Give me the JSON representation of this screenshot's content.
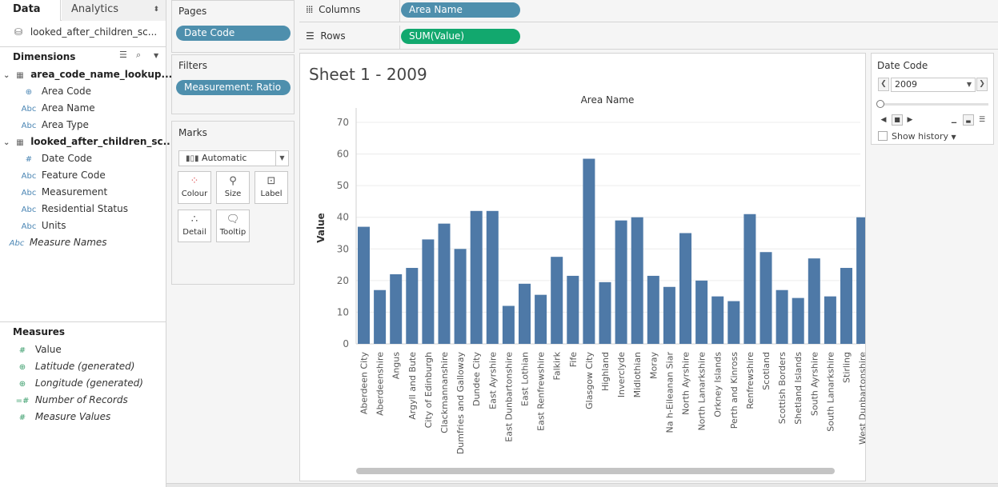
{
  "left_pane": {
    "tabs": {
      "data": "Data",
      "analytics": "Analytics"
    },
    "datasource": "looked_after_children_sc...",
    "dimensions_title": "Dimensions",
    "groups": [
      {
        "label": "area_code_name_lookup....",
        "fields": [
          {
            "label": "Area Code",
            "type": "geo"
          },
          {
            "label": "Area Name",
            "type": "Abc"
          },
          {
            "label": "Area Type",
            "type": "Abc"
          }
        ]
      },
      {
        "label": "looked_after_children_sc...",
        "fields": [
          {
            "label": "Date Code",
            "type": "#"
          },
          {
            "label": "Feature Code",
            "type": "Abc"
          },
          {
            "label": "Measurement",
            "type": "Abc"
          },
          {
            "label": "Residential Status",
            "type": "Abc"
          },
          {
            "label": "Units",
            "type": "Abc"
          }
        ]
      }
    ],
    "measure_names": "Measure Names",
    "measures_title": "Measures",
    "measures": [
      {
        "label": "Value",
        "type": "#",
        "italic": false
      },
      {
        "label": "Latitude (generated)",
        "type": "geo",
        "italic": true
      },
      {
        "label": "Longitude (generated)",
        "type": "geo",
        "italic": true
      },
      {
        "label": "Number of Records",
        "type": "=#",
        "italic": true
      },
      {
        "label": "Measure Values",
        "type": "#",
        "italic": true
      }
    ]
  },
  "pages": {
    "title": "Pages",
    "pill": "Date Code"
  },
  "filters": {
    "title": "Filters",
    "pill": "Measurement: Ratio"
  },
  "marks": {
    "title": "Marks",
    "type": "Automatic",
    "buttons": [
      "Colour",
      "Size",
      "Label",
      "Detail",
      "Tooltip"
    ]
  },
  "shelves": {
    "columns": {
      "label": "Columns",
      "pill": "Area Name"
    },
    "rows": {
      "label": "Rows",
      "pill": "SUM(Value)"
    }
  },
  "sheet_title": "Sheet 1 - 2009",
  "date_code_card": {
    "title": "Date Code",
    "value": "2009",
    "show_history": "Show history"
  },
  "colors": {
    "bar": "#4e79a7",
    "pill_blue": "#4e8fad",
    "pill_green": "#12a86e"
  },
  "chart_data": {
    "type": "bar",
    "title": "Area Name",
    "ylabel": "Value",
    "ylim": [
      0,
      70
    ],
    "yticks": [
      0,
      10,
      20,
      30,
      40,
      50,
      60,
      70
    ],
    "categories": [
      "Aberdeen City",
      "Aberdeenshire",
      "Angus",
      "Argyll and Bute",
      "City of Edinburgh",
      "Clackmannanshire",
      "Dumfries and Galloway",
      "Dundee City",
      "East Ayrshire",
      "East Dunbartonshire",
      "East Lothian",
      "East Renfrewshire",
      "Falkirk",
      "Fife",
      "Glasgow City",
      "Highland",
      "Inverclyde",
      "Midlothian",
      "Moray",
      "Na h-Eileanan Siar",
      "North Ayrshire",
      "North Lanarkshire",
      "Orkney Islands",
      "Perth and Kinross",
      "Renfrewshire",
      "Scotland",
      "Scottish Borders",
      "Shetland Islands",
      "South Ayrshire",
      "South Lanarkshire",
      "Stirling",
      "West Dunbartonshire"
    ],
    "values": [
      37,
      17,
      22,
      24,
      33,
      38,
      30,
      42,
      42,
      12,
      19,
      15.5,
      27.5,
      21.5,
      58.5,
      19.5,
      39,
      40,
      21.5,
      18,
      35,
      20,
      15,
      13.5,
      41,
      29,
      17,
      14.5,
      27,
      15,
      24,
      40
    ]
  }
}
